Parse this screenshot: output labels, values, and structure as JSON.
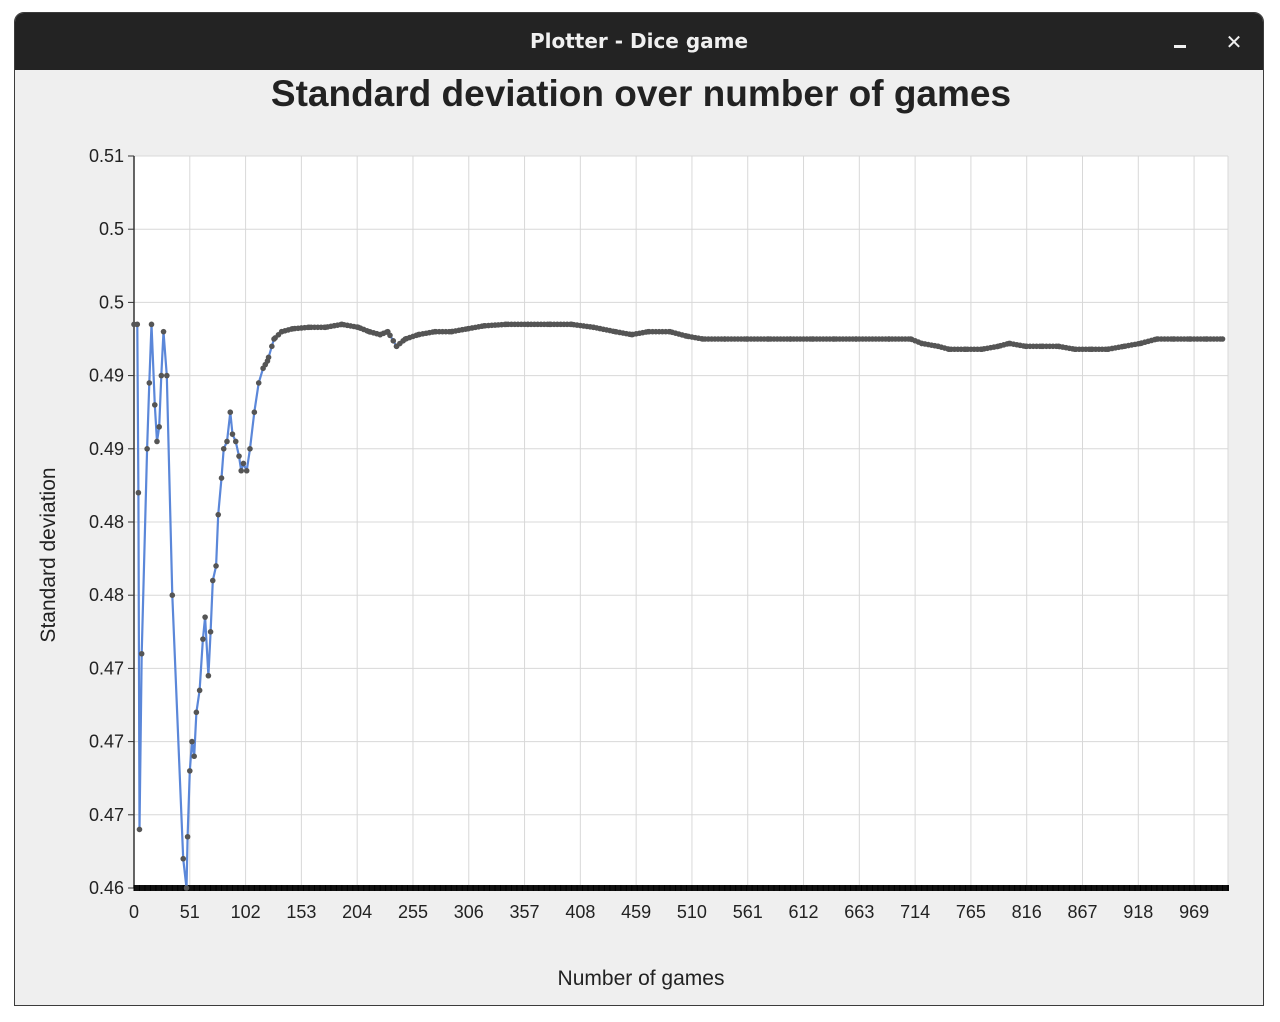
{
  "window": {
    "title": "Plotter - Dice game",
    "minimize_icon": "minimize-icon",
    "close_icon": "close-icon",
    "close_glyph": "✕"
  },
  "chart_data": {
    "type": "line",
    "title": "Standard deviation over number of games",
    "xlabel": "Number of games",
    "ylabel": "Standard deviation",
    "xlim": [
      0,
      1000
    ],
    "ylim": [
      0.46,
      0.51
    ],
    "x_ticks": [
      0,
      51,
      102,
      153,
      204,
      255,
      306,
      357,
      408,
      459,
      510,
      561,
      612,
      663,
      714,
      765,
      816,
      867,
      918,
      969
    ],
    "y_ticks": [
      {
        "value": 0.46,
        "label": "0.46"
      },
      {
        "value": 0.465,
        "label": "0.47"
      },
      {
        "value": 0.47,
        "label": "0.47"
      },
      {
        "value": 0.475,
        "label": "0.47"
      },
      {
        "value": 0.48,
        "label": "0.48"
      },
      {
        "value": 0.485,
        "label": "0.48"
      },
      {
        "value": 0.49,
        "label": "0.49"
      },
      {
        "value": 0.495,
        "label": "0.49"
      },
      {
        "value": 0.5,
        "label": "0.5"
      },
      {
        "value": 0.505,
        "label": "0.5"
      },
      {
        "value": 0.51,
        "label": "0.51"
      }
    ],
    "grid": true,
    "colors": {
      "line": "#5b87d9",
      "marker": "#555555",
      "grid": "#d8d8d8"
    },
    "series": [
      {
        "keypoints": [
          [
            0,
            0.4985
          ],
          [
            3,
            0.4985
          ],
          [
            4,
            0.487
          ],
          [
            5,
            0.464
          ],
          [
            7,
            0.476
          ],
          [
            12,
            0.49
          ],
          [
            14,
            0.4945
          ],
          [
            16,
            0.4985
          ],
          [
            19,
            0.493
          ],
          [
            21,
            0.4905
          ],
          [
            23,
            0.4915
          ],
          [
            25,
            0.495
          ],
          [
            27,
            0.498
          ],
          [
            30,
            0.495
          ],
          [
            35,
            0.48
          ],
          [
            45,
            0.462
          ],
          [
            48,
            0.46
          ],
          [
            49,
            0.4635
          ],
          [
            51,
            0.468
          ],
          [
            53,
            0.47
          ],
          [
            55,
            0.469
          ],
          [
            57,
            0.472
          ],
          [
            60,
            0.4735
          ],
          [
            63,
            0.477
          ],
          [
            65,
            0.4785
          ],
          [
            68,
            0.4745
          ],
          [
            70,
            0.4775
          ],
          [
            72,
            0.481
          ],
          [
            75,
            0.482
          ],
          [
            77,
            0.4855
          ],
          [
            80,
            0.488
          ],
          [
            82,
            0.49
          ],
          [
            85,
            0.4905
          ],
          [
            88,
            0.4925
          ],
          [
            90,
            0.491
          ],
          [
            93,
            0.4905
          ],
          [
            96,
            0.4895
          ],
          [
            98,
            0.4885
          ],
          [
            100,
            0.489
          ],
          [
            103,
            0.4885
          ],
          [
            106,
            0.49
          ],
          [
            110,
            0.4925
          ],
          [
            114,
            0.4945
          ],
          [
            118,
            0.4955
          ],
          [
            122,
            0.496
          ],
          [
            128,
            0.4975
          ],
          [
            135,
            0.498
          ],
          [
            145,
            0.4982
          ],
          [
            160,
            0.4983
          ],
          [
            175,
            0.4983
          ],
          [
            190,
            0.4985
          ],
          [
            205,
            0.4983
          ],
          [
            215,
            0.498
          ],
          [
            225,
            0.4978
          ],
          [
            232,
            0.498
          ],
          [
            240,
            0.497
          ],
          [
            248,
            0.4975
          ],
          [
            260,
            0.4978
          ],
          [
            275,
            0.498
          ],
          [
            290,
            0.498
          ],
          [
            305,
            0.4982
          ],
          [
            320,
            0.4984
          ],
          [
            340,
            0.4985
          ],
          [
            360,
            0.4985
          ],
          [
            380,
            0.4985
          ],
          [
            400,
            0.4985
          ],
          [
            420,
            0.4983
          ],
          [
            440,
            0.498
          ],
          [
            455,
            0.4978
          ],
          [
            470,
            0.498
          ],
          [
            490,
            0.498
          ],
          [
            505,
            0.4977
          ],
          [
            520,
            0.4975
          ],
          [
            540,
            0.4975
          ],
          [
            560,
            0.4975
          ],
          [
            580,
            0.4975
          ],
          [
            600,
            0.4975
          ],
          [
            620,
            0.4975
          ],
          [
            640,
            0.4975
          ],
          [
            660,
            0.4975
          ],
          [
            690,
            0.4975
          ],
          [
            710,
            0.4975
          ],
          [
            720,
            0.4972
          ],
          [
            735,
            0.497
          ],
          [
            745,
            0.4968
          ],
          [
            760,
            0.4968
          ],
          [
            775,
            0.4968
          ],
          [
            790,
            0.497
          ],
          [
            800,
            0.4972
          ],
          [
            815,
            0.497
          ],
          [
            830,
            0.497
          ],
          [
            845,
            0.497
          ],
          [
            860,
            0.4968
          ],
          [
            875,
            0.4968
          ],
          [
            890,
            0.4968
          ],
          [
            905,
            0.497
          ],
          [
            920,
            0.4972
          ],
          [
            935,
            0.4975
          ],
          [
            950,
            0.4975
          ],
          [
            965,
            0.4975
          ],
          [
            980,
            0.4975
          ],
          [
            995,
            0.4975
          ]
        ]
      }
    ]
  }
}
